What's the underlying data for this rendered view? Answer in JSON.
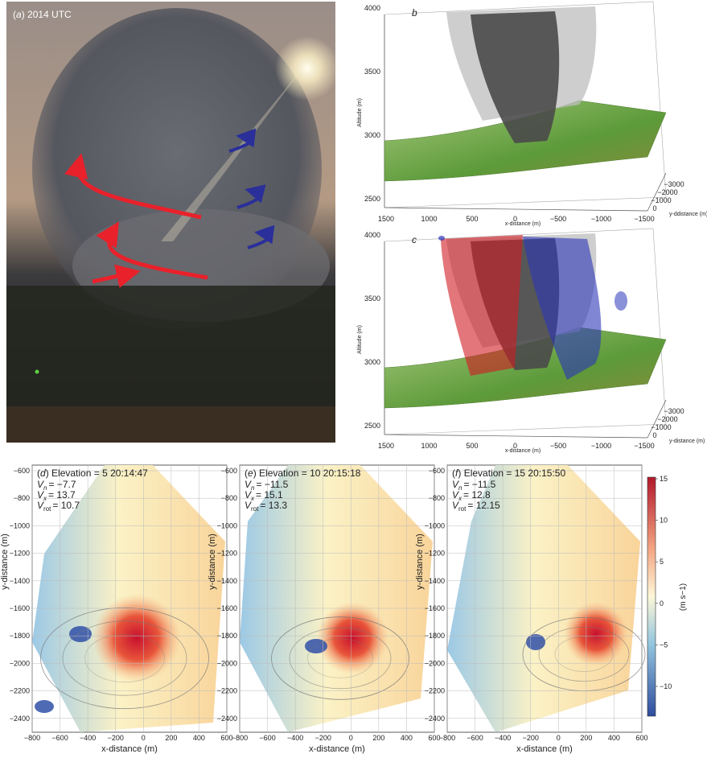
{
  "panel_a": {
    "letter": "a",
    "caption": "2014 UTC"
  },
  "panel_b": {
    "letter": "b",
    "z_axis_label": "Altitude (m)",
    "x_axis_label": "x-distance (m)",
    "depth_axis_label": "y-ddistance (m)",
    "z_ticks": [
      "2500",
      "3000",
      "3500",
      "4000"
    ],
    "x_ticks": [
      "1500",
      "1000",
      "500",
      "0",
      "−500",
      "−1000",
      "−1500"
    ],
    "depth_ticks": [
      "−3000",
      "−2000",
      "−1000",
      "0"
    ]
  },
  "panel_c": {
    "letter": "c",
    "z_axis_label": "Altitude (m)",
    "x_axis_label": "x-distance (m)",
    "depth_axis_label": "y-distance (m)",
    "z_ticks": [
      "2500",
      "3000",
      "3500",
      "4000"
    ],
    "x_ticks": [
      "1500",
      "1000",
      "500",
      "0",
      "−500",
      "−1000",
      "−1500"
    ],
    "depth_ticks": [
      "−3000",
      "−2000",
      "−1000",
      "0"
    ]
  },
  "radar_axes": {
    "x_axis_label": "x-distance (m)",
    "y_axis_label": "y-distance (m)",
    "x_ticks": [
      "−800",
      "−600",
      "−400",
      "−200",
      "0",
      "200",
      "400",
      "600"
    ],
    "y_ticks": [
      "−600",
      "−800",
      "−1000",
      "−1200",
      "−1400",
      "−1600",
      "−1800",
      "−2000",
      "−2200",
      "−2400"
    ]
  },
  "panel_d": {
    "letter": "d",
    "elevation": "Elevation = 5",
    "time": "20:14:47",
    "lines": [
      {
        "symbol": "V",
        "sub": "n",
        "value": "= −7.7"
      },
      {
        "symbol": "V",
        "sub": "x",
        "value": "= 13.7"
      },
      {
        "symbol": "V",
        "sub": "rot",
        "value": "= 10.7"
      }
    ]
  },
  "panel_e": {
    "letter": "e",
    "elevation": "Elevation = 10",
    "time": "20:15:18",
    "lines": [
      {
        "symbol": "V",
        "sub": "n",
        "value": "= −11.5"
      },
      {
        "symbol": "V",
        "sub": "x",
        "value": "= 15.1"
      },
      {
        "symbol": "V",
        "sub": "rot",
        "value": "= 13.3"
      }
    ]
  },
  "panel_f": {
    "letter": "f",
    "elevation": "Elevation = 15",
    "time": "20:15:50",
    "lines": [
      {
        "symbol": "V",
        "sub": "n",
        "value": "= −11.5"
      },
      {
        "symbol": "V",
        "sub": "x",
        "value": "= 12.8"
      },
      {
        "symbol": "V",
        "sub": "rot",
        "value": "= 12.15"
      }
    ]
  },
  "colorbar": {
    "ticks": [
      "15",
      "10",
      "5",
      "0",
      "−5",
      "−10"
    ],
    "label": "(m s−1)"
  }
}
